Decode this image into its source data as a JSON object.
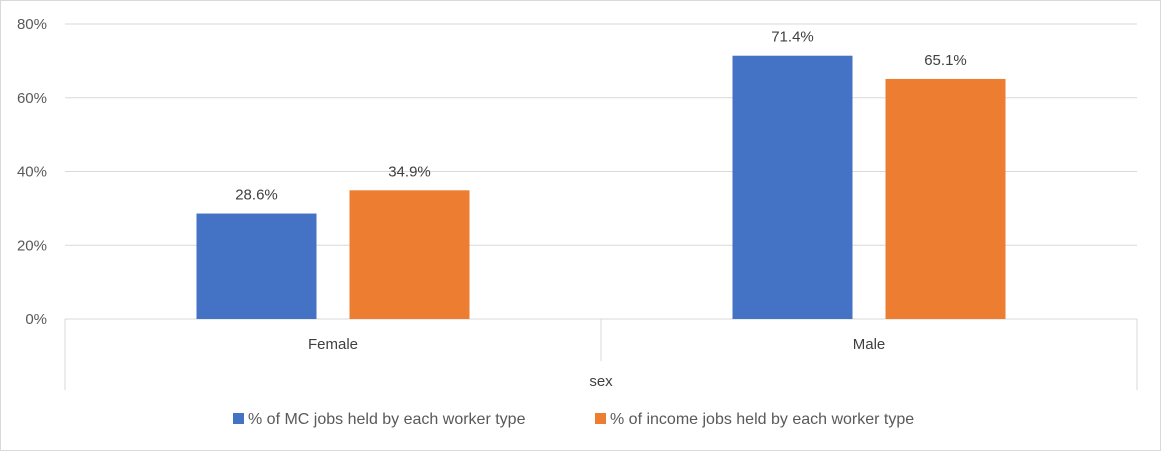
{
  "chart_data": {
    "type": "bar",
    "categories": [
      "Female",
      "Male"
    ],
    "series": [
      {
        "name": "% of MC jobs held by each worker type",
        "values": [
          28.6,
          71.4
        ],
        "color": "#4472C4"
      },
      {
        "name": "% of income jobs held by each worker type",
        "values": [
          34.9,
          65.1
        ],
        "color": "#ED7D31"
      }
    ],
    "value_format": "percent_1dp",
    "ylim": [
      0,
      80
    ],
    "y_ticks": [
      "0%",
      "20%",
      "40%",
      "60%",
      "80%"
    ],
    "y_tick_values": [
      0,
      20,
      40,
      60,
      80
    ],
    "xlabel": "sex",
    "ylabel": "",
    "title": "",
    "grid": true,
    "legend_position": "bottom"
  }
}
